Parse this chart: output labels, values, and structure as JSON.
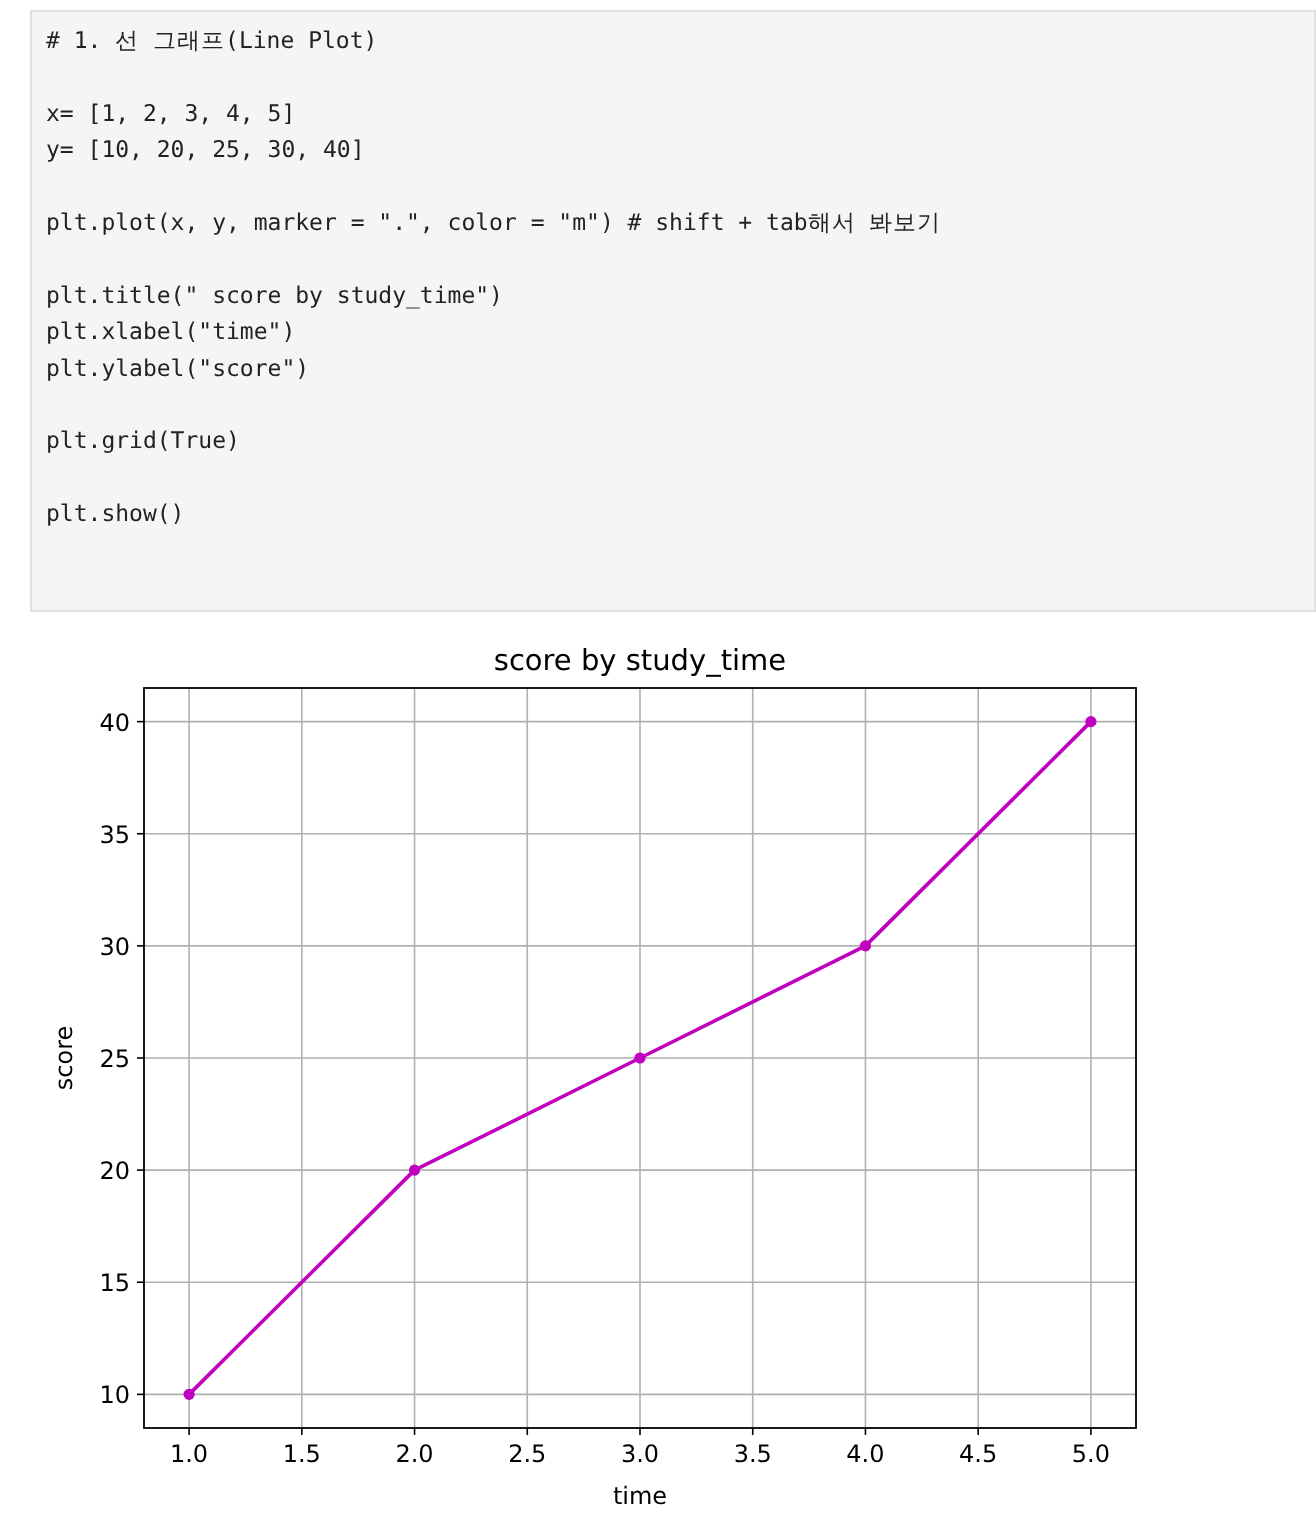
{
  "chart_data": {
    "type": "line",
    "title": "score by study_time",
    "xlabel": "time",
    "ylabel": "score",
    "x": [
      1,
      2,
      3,
      4,
      5
    ],
    "series": [
      {
        "color": "#bf00bf",
        "values": [
          10,
          20,
          25,
          30,
          40
        ]
      }
    ],
    "xlim": [
      0.8,
      5.2
    ],
    "ylim": [
      8.5,
      41.5
    ],
    "xticks": [
      {
        "value": 1,
        "label": "1.0"
      },
      {
        "value": 1.5,
        "label": "1.5"
      },
      {
        "value": 2,
        "label": "2.0"
      },
      {
        "value": 2.5,
        "label": "2.5"
      },
      {
        "value": 3,
        "label": "3.0"
      },
      {
        "value": 3.5,
        "label": "3.5"
      },
      {
        "value": 4,
        "label": "4.0"
      },
      {
        "value": 4.5,
        "label": "4.5"
      },
      {
        "value": 5,
        "label": "5.0"
      }
    ],
    "yticks": [
      10,
      15,
      20,
      25,
      30,
      35,
      40
    ],
    "grid": true,
    "marker": "circle",
    "line_style": "solid",
    "annotations": [
      "# 1. 선 그래프(Line Plot)",
      "x= [1, 2, 3, 4, 5]",
      "y= [10, 20, 25, 30, 40]",
      "plt.plot(x, y, marker = \".\", color = \"m\") # shift + tab해서 봐보기",
      "plt.title(\" score by study_time\")",
      "plt.xlabel(\"time\")",
      "plt.ylabel(\"score\")",
      "plt.grid(True)",
      "plt.show()"
    ]
  }
}
